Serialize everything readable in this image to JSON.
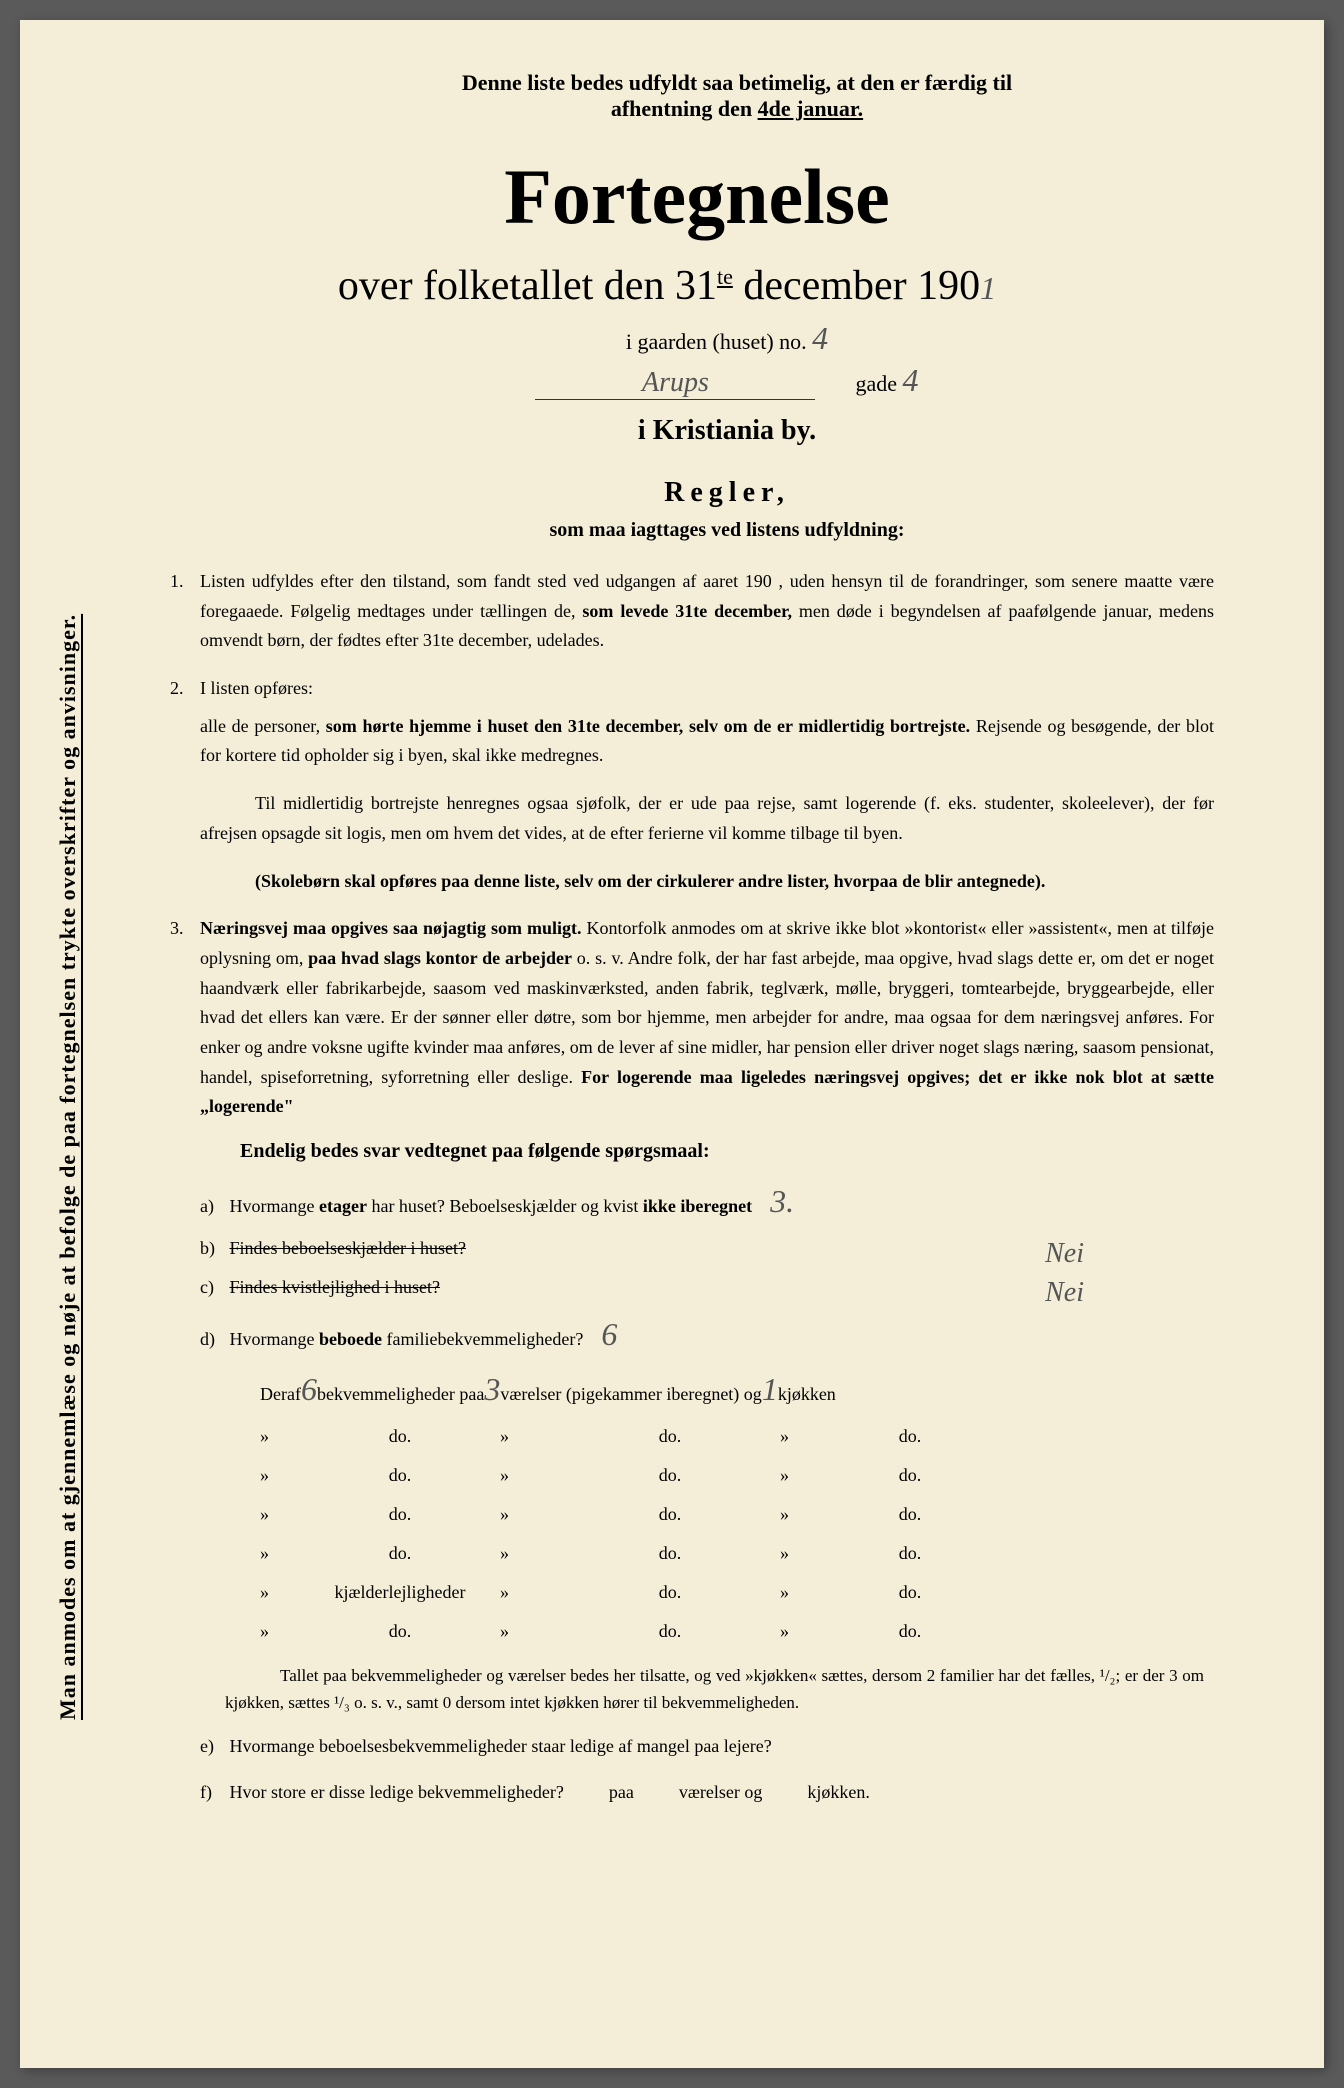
{
  "background_color": "#f4eed8",
  "text_color": "#1a1a1a",
  "vertical_note": "Man anmodes om at gjennemlæse og nøje at befolge de paa fortegnelsen trykte overskrifter og anvisninger.",
  "pickup_notice": {
    "line1": "Denne liste bedes udfyldt saa betimelig, at den er færdig til",
    "line2_prefix": "afhentning den ",
    "date": "4de januar."
  },
  "main_title": "Fortegnelse",
  "subtitle_prefix": "over folketallet den 31",
  "subtitle_sup": "te",
  "subtitle_suffix": " december 190",
  "house_label": "i gaarden (huset) no.",
  "house_number": "4",
  "street_name": "Arups",
  "street_label": "gade",
  "street_number": "4",
  "city": "i Kristiania by.",
  "rules_title": "Regler,",
  "rules_subtitle": "som maa iagttages ved listens udfyldning:",
  "rules": {
    "rule1_num": "1.",
    "rule1": "Listen udfyldes efter den tilstand, som fandt sted ved udgangen af aaret 190   , uden hensyn til de forandringer, som senere maatte være foregaaede. Følgelig medtages under tællingen de, ",
    "rule1_bold": "som levede 31te december,",
    "rule1_cont": " men døde i begyndelsen af paafølgende januar, medens omvendt børn, der fødtes efter 31te december, udelades.",
    "rule2_num": "2.",
    "rule2_intro": "I listen opføres:",
    "rule2_body_prefix": "alle de personer, ",
    "rule2_bold1": "som hørte hjemme i huset den 31te december, selv om de er midlertidig bortrejste.",
    "rule2_body_suffix": " Rejsende og besøgende, der blot for kortere tid opholder sig i byen, skal ikke medregnes.",
    "rule2_para2": "Til midlertidig bortrejste henregnes ogsaa sjøfolk, der er ude paa rejse, samt logerende (f. eks. studenter, skoleelever), der før afrejsen opsagde sit logis, men om hvem det vides, at de efter ferierne vil komme tilbage til byen.",
    "rule2_para3": "(Skolebørn skal opføres paa denne liste, selv om der cirkulerer andre lister, hvorpaa de blir antegnede).",
    "rule3_num": "3.",
    "rule3_bold1": "Næringsvej maa opgives saa nøjagtig som muligt.",
    "rule3_text1": " Kontorfolk anmodes om at skrive ikke blot »kontorist« eller »assistent«, men at tilføje oplysning om, ",
    "rule3_bold2": "paa hvad slags kontor de arbejder",
    "rule3_text2": " o. s. v. Andre folk, der har fast arbejde, maa opgive, hvad slags dette er, om det er noget haandværk eller fabrikarbejde, saasom ved maskinværksted, anden fabrik, teglværk, mølle, bryggeri, tomtearbejde, bryggearbejde, eller hvad det ellers kan være. Er der sønner eller døtre, som bor hjemme, men arbejder for andre, maa ogsaa for dem næringsvej anføres. For enker og andre voksne ugifte kvinder maa anføres, om de lever af sine midler, har pension eller driver noget slags næring, saasom pensionat, handel, spiseforretning, syforretning eller deslige. ",
    "rule3_bold3": "For logerende maa ligeledes næringsvej opgives; det er ikke nok blot at sætte „logerende\""
  },
  "questions_title": "Endelig bedes svar vedtegnet paa følgende spørgsmaal:",
  "questions": {
    "a_letter": "a)",
    "a_text1": "Hvormange ",
    "a_bold": "etager",
    "a_text2": " har huset? Beboelseskjælder og kvist ",
    "a_bold2": "ikke iberegnet",
    "a_answer": "3.",
    "b_letter": "b)",
    "b_text": "Findes beboelseskjælder i huset?",
    "b_answer": "Nei",
    "c_letter": "c)",
    "c_text": "Findes kvistlejlighed i huset?",
    "c_answer": "Nei",
    "d_letter": "d)",
    "d_text1": "Hvormange ",
    "d_bold": "beboede",
    "d_text2": " familiebekvemmeligheder?",
    "d_answer": "6"
  },
  "apartment_intro": {
    "prefix": "Deraf ",
    "num1": "6",
    "text1": " bekvemmeligheder paa",
    "num2": "3",
    "text2": " værelser (pigekammer iberegnet) og ",
    "num3": "1",
    "text3": " kjøkken"
  },
  "apartment_rows": [
    {
      "col1": "»",
      "col2": "do.",
      "col3": "»",
      "col4": "do.",
      "col5": "»",
      "col6": "do."
    },
    {
      "col1": "»",
      "col2": "do.",
      "col3": "»",
      "col4": "do.",
      "col5": "»",
      "col6": "do."
    },
    {
      "col1": "»",
      "col2": "do.",
      "col3": "»",
      "col4": "do.",
      "col5": "»",
      "col6": "do."
    },
    {
      "col1": "»",
      "col2": "do.",
      "col3": "»",
      "col4": "do.",
      "col5": "»",
      "col6": "do."
    },
    {
      "col1": "»",
      "col2": "kjælderlejligheder",
      "col3": "»",
      "col4": "do.",
      "col5": "»",
      "col6": "do."
    },
    {
      "col1": "»",
      "col2": "do.",
      "col3": "»",
      "col4": "do.",
      "col5": "»",
      "col6": "do."
    }
  ],
  "bottom_note": "Tallet paa bekvemmeligheder og værelser bedes her tilsatte, og ved »kjøkken« sættes, dersom 2 familier har det fælles, ¹/₂; er der 3 om kjøkken, sættes ¹/₃ o. s. v., samt 0 dersom intet kjøkken hører til bekvemmeligheden.",
  "question_e": {
    "letter": "e)",
    "text": "Hvormange beboelsesbekvemmeligheder staar ledige af mangel paa lejere?"
  },
  "question_f": {
    "letter": "f)",
    "text1": "Hvor store er disse ledige bekvemmeligheder?",
    "text2": "paa",
    "text3": "værelser og",
    "text4": "kjøkken."
  }
}
